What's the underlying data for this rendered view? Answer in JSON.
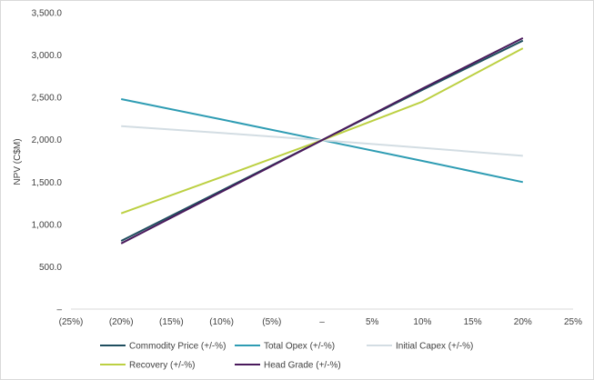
{
  "chart_data": {
    "type": "line",
    "ylabel": "NPV (C$M)",
    "xlabel": "",
    "x_ticks": [
      "(25%)",
      "(20%)",
      "(15%)",
      "(10%)",
      "(5%)",
      "–",
      "5%",
      "10%",
      "15%",
      "20%",
      "25%"
    ],
    "x_values": [
      -25,
      -20,
      -15,
      -10,
      -5,
      0,
      5,
      10,
      15,
      20,
      25
    ],
    "xlim": [
      -25,
      25
    ],
    "y_ticks": [
      "–",
      "500.0",
      "1,000.0",
      "1,500.0",
      "2,000.0",
      "2,500.0",
      "3,000.0",
      "3,500.0"
    ],
    "y_tick_values": [
      0,
      500,
      1000,
      1500,
      2000,
      2500,
      3000,
      3500
    ],
    "ylim": [
      0,
      3500
    ],
    "grid": false,
    "legend_position": "bottom",
    "series": [
      {
        "name": "Commodity Price (+/-%)",
        "color": "#1f4e5f",
        "x": [
          -20,
          -10,
          0,
          10,
          20
        ],
        "y": [
          805,
          1400,
          1995,
          2590,
          3170
        ]
      },
      {
        "name": "Total Opex (+/-%)",
        "color": "#2e9cb3",
        "x": [
          -20,
          -10,
          0,
          10,
          20
        ],
        "y": [
          2480,
          2240,
          1995,
          1750,
          1500
        ]
      },
      {
        "name": "Initial Capex (+/-%)",
        "color": "#d3dde3",
        "x": [
          -20,
          -10,
          0,
          10,
          20
        ],
        "y": [
          2160,
          2080,
          1995,
          1905,
          1810
        ]
      },
      {
        "name": "Recovery (+/-%)",
        "color": "#bcd042",
        "x": [
          -20,
          -10,
          0,
          10,
          20
        ],
        "y": [
          1130,
          1560,
          1995,
          2450,
          3080
        ]
      },
      {
        "name": "Head Grade (+/-%)",
        "color": "#4a1a5c",
        "x": [
          -20,
          -10,
          0,
          10,
          20
        ],
        "y": [
          775,
          1385,
          1995,
          2605,
          3200
        ]
      }
    ]
  }
}
